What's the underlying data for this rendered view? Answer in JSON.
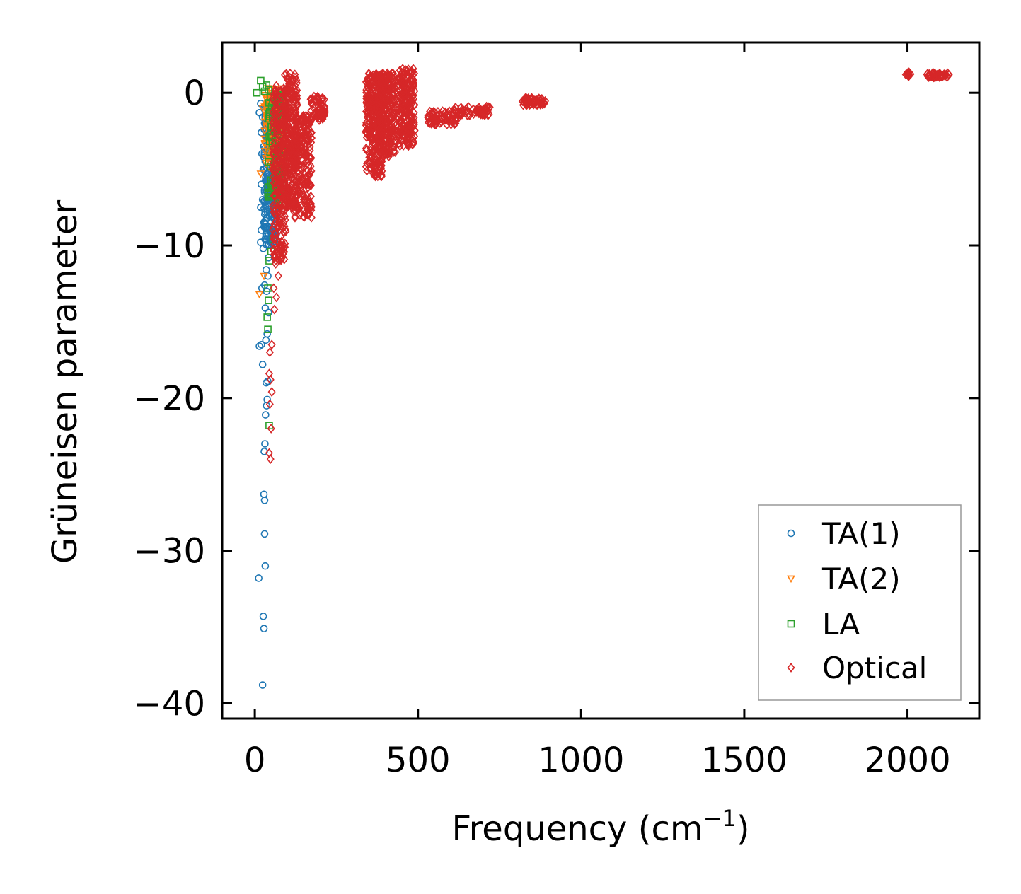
{
  "chart_data": {
    "type": "scatter",
    "xlabel": "Frequency (cm",
    "xlabel_sup": "−1",
    "xlabel_close": ")",
    "ylabel": "Grüneisen parameter",
    "xlim": [
      -100,
      2220
    ],
    "ylim": [
      -41,
      3.3
    ],
    "xticks": [
      0,
      500,
      1000,
      1500,
      2000
    ],
    "xtick_labels": [
      "0",
      "500",
      "1000",
      "1500",
      "2000"
    ],
    "yticks": [
      0,
      -10,
      -20,
      -30,
      -40
    ],
    "ytick_labels": [
      "0",
      "−10",
      "−20",
      "−30",
      "−40"
    ],
    "legend_position": "lower-right",
    "series": [
      {
        "name": "TA(1)",
        "marker": "circle",
        "color": "#1f77b4",
        "points": [
          [
            24,
            -38.8
          ],
          [
            28,
            -35.1
          ],
          [
            26,
            -34.3
          ],
          [
            12,
            -31.8
          ],
          [
            32,
            -31.0
          ],
          [
            30,
            -28.9
          ],
          [
            30,
            -26.7
          ],
          [
            28,
            -26.3
          ],
          [
            29,
            -23.5
          ],
          [
            31,
            -23.0
          ],
          [
            36,
            -20.5
          ],
          [
            38,
            -20.1
          ],
          [
            33,
            -21.1
          ],
          [
            35,
            -19.0
          ],
          [
            40,
            -18.9
          ],
          [
            24,
            -17.8
          ],
          [
            14,
            -16.6
          ],
          [
            20,
            -16.5
          ],
          [
            34,
            -16.2
          ],
          [
            38,
            -15.8
          ],
          [
            42,
            -14.4
          ],
          [
            32,
            -14.1
          ],
          [
            36,
            -13.0
          ],
          [
            22,
            -12.8
          ],
          [
            30,
            -12.6
          ],
          [
            40,
            -12.0
          ],
          [
            35,
            -11.6
          ],
          [
            42,
            -10.8
          ],
          [
            18,
            -9.8
          ],
          [
            26,
            -10.2
          ],
          [
            34,
            -9.4
          ],
          [
            20,
            -9.0
          ],
          [
            28,
            -8.5
          ],
          [
            36,
            -8.2
          ],
          [
            18,
            -7.5
          ],
          [
            24,
            -7.0
          ],
          [
            30,
            -6.5
          ],
          [
            20,
            -6.0
          ],
          [
            38,
            -5.6
          ],
          [
            26,
            -5.0
          ],
          [
            32,
            -4.5
          ],
          [
            22,
            -4.0
          ],
          [
            28,
            -3.5
          ],
          [
            34,
            -3.2
          ],
          [
            20,
            -2.6
          ],
          [
            30,
            -2.0
          ],
          [
            24,
            -1.6
          ],
          [
            14,
            -1.3
          ],
          [
            36,
            -1.0
          ],
          [
            18,
            -0.7
          ]
        ]
      },
      {
        "name": "TA(2)",
        "marker": "triangle-down",
        "color": "#ff7f0e",
        "points": [
          [
            14,
            -13.2
          ],
          [
            28,
            -12.0
          ],
          [
            18,
            -5.3
          ],
          [
            34,
            -4.6
          ],
          [
            40,
            -3.8
          ],
          [
            48,
            -3.0
          ],
          [
            56,
            -2.4
          ],
          [
            62,
            -1.8
          ],
          [
            70,
            -1.2
          ],
          [
            78,
            -0.6
          ],
          [
            30,
            -0.9
          ],
          [
            44,
            -0.3
          ],
          [
            52,
            0.0
          ],
          [
            66,
            -0.4
          ],
          [
            74,
            -1.4
          ],
          [
            60,
            -2.9
          ],
          [
            80,
            -2.2
          ],
          [
            36,
            -1.7
          ],
          [
            24,
            -1.0
          ],
          [
            50,
            -4.2
          ],
          [
            72,
            -3.6
          ],
          [
            84,
            -1.0
          ],
          [
            40,
            0.3
          ],
          [
            58,
            -0.8
          ]
        ]
      },
      {
        "name": "LA",
        "marker": "square",
        "color": "#2ca02c",
        "points": [
          [
            44,
            -21.8
          ],
          [
            40,
            -15.5
          ],
          [
            38,
            -14.7
          ],
          [
            42,
            -13.6
          ],
          [
            40,
            -12.8
          ],
          [
            44,
            -11.0
          ],
          [
            50,
            -10.4
          ],
          [
            56,
            -9.6
          ],
          [
            6,
            0.0
          ],
          [
            18,
            0.8
          ],
          [
            24,
            0.4
          ],
          [
            30,
            0.1
          ],
          [
            36,
            0.5
          ],
          [
            42,
            0.2
          ],
          [
            48,
            -0.3
          ],
          [
            60,
            -1.0
          ],
          [
            70,
            -2.0
          ],
          [
            80,
            -0.2
          ],
          [
            76,
            -3.5
          ],
          [
            66,
            -4.4
          ],
          [
            54,
            -6.2
          ],
          [
            62,
            -7.4
          ],
          [
            84,
            -1.6
          ],
          [
            72,
            -5.4
          ]
        ]
      },
      {
        "name": "Optical",
        "marker": "diamond",
        "color": "#d62728",
        "points": [
          [
            48,
            -24.0
          ],
          [
            44,
            -23.6
          ],
          [
            50,
            -22.0
          ],
          [
            46,
            -20.4
          ],
          [
            52,
            -19.6
          ],
          [
            48,
            -18.8
          ],
          [
            44,
            -18.4
          ],
          [
            46,
            -17.0
          ],
          [
            52,
            -16.5
          ],
          [
            60,
            -14.2
          ],
          [
            66,
            -13.4
          ],
          [
            58,
            -12.8
          ],
          [
            72,
            -12.0
          ],
          [
            64,
            -11.2
          ],
          [
            78,
            -10.4
          ],
          [
            600,
            -1.7
          ],
          [
            690,
            -1.1
          ],
          [
            710,
            -0.9
          ],
          [
            1995,
            1.2
          ],
          [
            2060,
            1.2
          ]
        ]
      }
    ],
    "optical_clusters": [
      {
        "f0": 55,
        "f1": 95,
        "g_top": 0.5,
        "g_bottom": -11.0,
        "count": 260
      },
      {
        "f0": 90,
        "f1": 130,
        "g_top": 1.3,
        "g_bottom": -7.5,
        "count": 260
      },
      {
        "f0": 120,
        "f1": 175,
        "g_top": -1.5,
        "g_bottom": -8.2,
        "count": 220
      },
      {
        "f0": 170,
        "f1": 215,
        "g_top": -0.2,
        "g_bottom": -1.8,
        "count": 60
      },
      {
        "f0": 340,
        "f1": 390,
        "g_top": 1.3,
        "g_bottom": -5.5,
        "count": 260
      },
      {
        "f0": 380,
        "f1": 430,
        "g_top": 1.3,
        "g_bottom": -4.2,
        "count": 260
      },
      {
        "f0": 440,
        "f1": 490,
        "g_top": 1.6,
        "g_bottom": -3.5,
        "count": 220
      },
      {
        "f0": 530,
        "f1": 620,
        "g_top": -1.2,
        "g_bottom": -2.1,
        "count": 70
      },
      {
        "f0": 610,
        "f1": 720,
        "g_top": -0.9,
        "g_bottom": -1.5,
        "count": 60
      },
      {
        "f0": 820,
        "f1": 890,
        "g_top": -0.3,
        "g_bottom": -0.8,
        "count": 60
      },
      {
        "f0": 2000,
        "f1": 2010,
        "g_top": 1.4,
        "g_bottom": 1.0,
        "count": 10
      },
      {
        "f0": 2060,
        "f1": 2130,
        "g_top": 1.3,
        "g_bottom": 1.0,
        "count": 40
      }
    ],
    "acoustic_clusters": [
      {
        "series": "TA(1)",
        "f0": 28,
        "f1": 70,
        "g_top": -1.0,
        "g_bottom": -10.0,
        "count": 240
      },
      {
        "series": "TA(2)",
        "f0": 30,
        "f1": 90,
        "g_top": 0.3,
        "g_bottom": -5.0,
        "count": 140
      },
      {
        "series": "LA",
        "f0": 40,
        "f1": 90,
        "g_top": 0.2,
        "g_bottom": -7.0,
        "count": 80
      }
    ]
  }
}
